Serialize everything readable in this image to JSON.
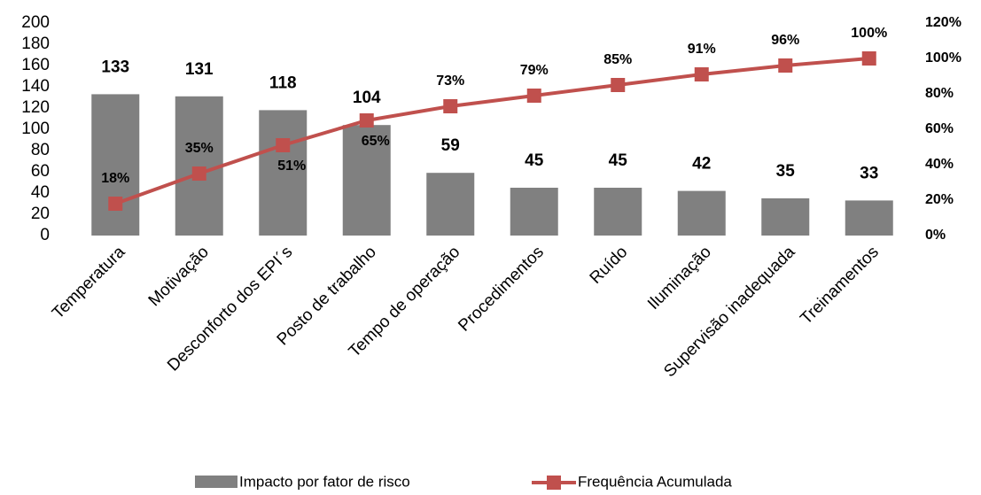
{
  "chart_data": {
    "type": "pareto",
    "categories": [
      "Temperatura",
      "Motivação",
      "Desconforto dos EPI´s",
      "Posto de trabalho",
      "Tempo de operação",
      "Procedimentos",
      "Ruído",
      "Iluminação",
      "Supervisão inadequada",
      "Treinamentos"
    ],
    "series": [
      {
        "name": "Impacto por fator de risco",
        "color": "#808080",
        "values": [
          133,
          131,
          118,
          104,
          59,
          45,
          45,
          42,
          35,
          33
        ]
      },
      {
        "name": "Frequência Acumulada",
        "color": "#c0504d",
        "axis": "y2",
        "values": [
          18,
          35,
          51,
          65,
          73,
          79,
          85,
          91,
          96,
          100
        ],
        "value_labels": [
          "18%",
          "35%",
          "51%",
          "65%",
          "73%",
          "79%",
          "85%",
          "91%",
          "96%",
          "100%"
        ]
      }
    ],
    "ylim": [
      0,
      200
    ],
    "yticks": [
      0,
      20,
      40,
      60,
      80,
      100,
      120,
      140,
      160,
      180,
      200
    ],
    "y2lim": [
      0,
      120
    ],
    "y2ticks": [
      {
        "value": 0,
        "label": "0%"
      },
      {
        "value": 20,
        "label": "20%"
      },
      {
        "value": 40,
        "label": "40%"
      },
      {
        "value": 60,
        "label": "60%"
      },
      {
        "value": 80,
        "label": "80%"
      },
      {
        "value": 100,
        "label": "100%"
      },
      {
        "value": 120,
        "label": "120%"
      }
    ]
  }
}
